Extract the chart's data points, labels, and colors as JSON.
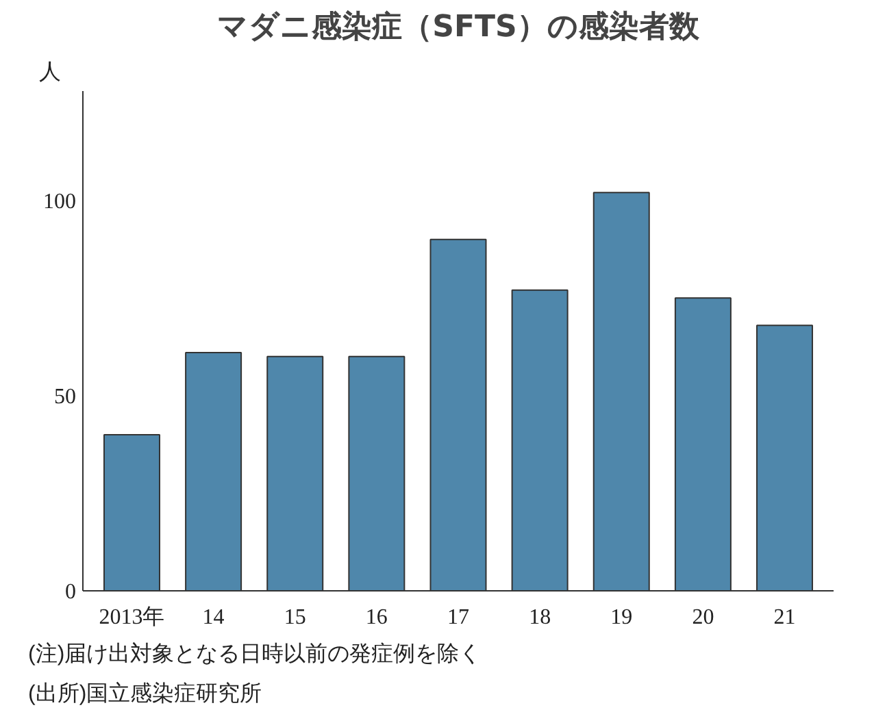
{
  "chart_data": {
    "type": "bar",
    "title": "マダニ感染症（SFTS）の感染者数",
    "ylabel": "人",
    "categories": [
      "2013年",
      "14",
      "15",
      "16",
      "17",
      "18",
      "19",
      "20",
      "21"
    ],
    "values": [
      40,
      61,
      60,
      60,
      90,
      77,
      102,
      75,
      68
    ],
    "color": "#4f87ab",
    "ylim": [
      0,
      128
    ],
    "yticks": [
      0,
      50,
      100
    ],
    "grid": false,
    "annotations": [
      "(注)届け出対象となる日時以前の発症例を除く",
      "(出所)国立感染症研究所"
    ]
  }
}
